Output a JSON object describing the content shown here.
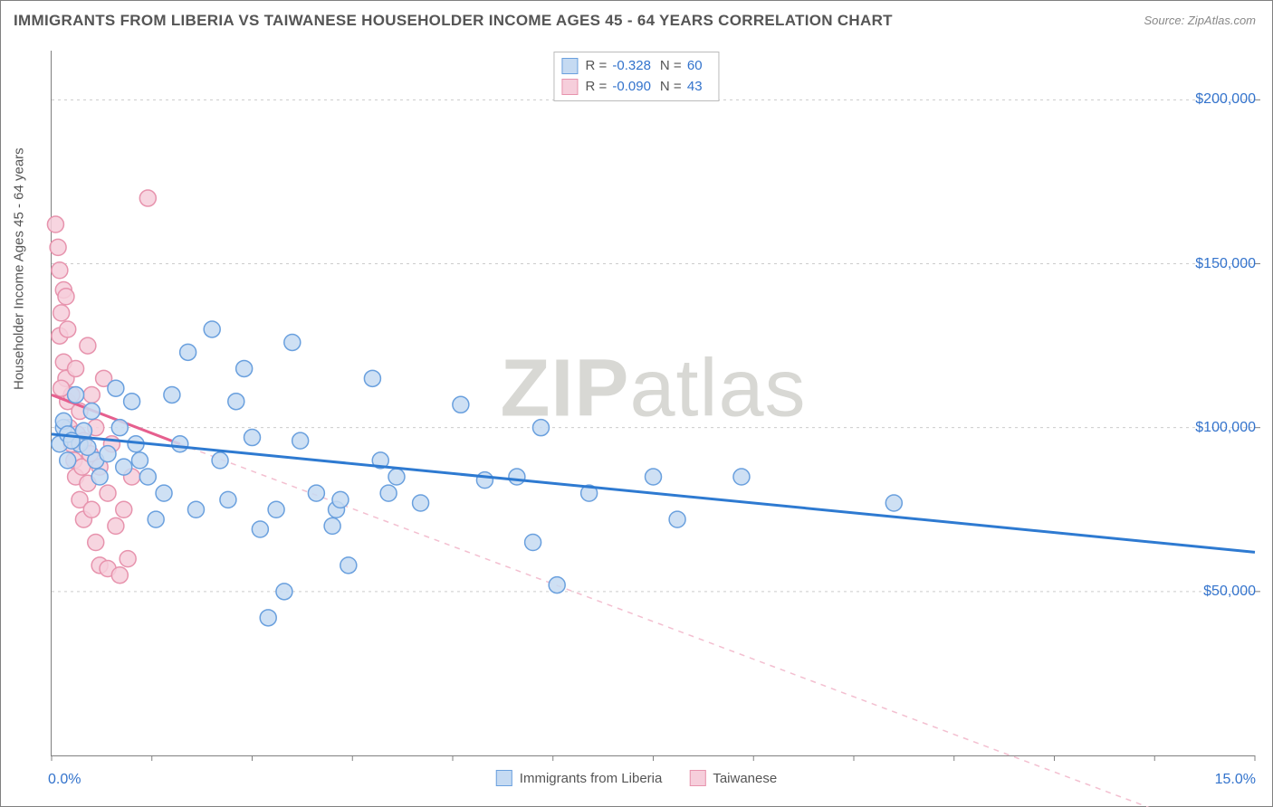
{
  "title": "IMMIGRANTS FROM LIBERIA VS TAIWANESE HOUSEHOLDER INCOME AGES 45 - 64 YEARS CORRELATION CHART",
  "source": "Source: ZipAtlas.com",
  "watermark": {
    "bold": "ZIP",
    "rest": "atlas"
  },
  "ylabel": "Householder Income Ages 45 - 64 years",
  "chart": {
    "type": "scatter",
    "background_color": "#ffffff",
    "grid_color": "#cccccc",
    "axis_color": "#808080",
    "tick_color": "#3373cc",
    "xlim": [
      0,
      15
    ],
    "ylim": [
      0,
      215000
    ],
    "xtick_min_label": "0.0%",
    "xtick_max_label": "15.0%",
    "xticks": [
      0,
      1.25,
      2.5,
      3.75,
      5.0,
      6.25,
      7.5,
      8.75,
      10.0,
      11.25,
      12.5,
      13.75,
      15.0
    ],
    "yticks": [
      {
        "value": 50000,
        "label": "$50,000"
      },
      {
        "value": 100000,
        "label": "$100,000"
      },
      {
        "value": 150000,
        "label": "$150,000"
      },
      {
        "value": 200000,
        "label": "$200,000"
      }
    ],
    "series": [
      {
        "name": "Immigrants from Liberia",
        "marker_color_fill": "#c5daf2",
        "marker_color_stroke": "#6aa0de",
        "marker_radius": 9,
        "line_color": "#2e7ad1",
        "line_width": 3,
        "dash_color": "#a9cdf0",
        "R": "-0.328",
        "N": "60",
        "trend": {
          "x1": 0,
          "y1": 98000,
          "x2": 15,
          "y2": 62000
        },
        "points": [
          [
            0.1,
            95000
          ],
          [
            0.15,
            100000
          ],
          [
            0.15,
            102000
          ],
          [
            0.2,
            98000
          ],
          [
            0.2,
            90000
          ],
          [
            0.3,
            110000
          ],
          [
            0.35,
            95000
          ],
          [
            0.4,
            99000
          ],
          [
            0.5,
            105000
          ],
          [
            0.55,
            90000
          ],
          [
            0.6,
            85000
          ],
          [
            0.7,
            92000
          ],
          [
            0.8,
            112000
          ],
          [
            0.85,
            100000
          ],
          [
            0.9,
            88000
          ],
          [
            1.0,
            108000
          ],
          [
            1.05,
            95000
          ],
          [
            1.1,
            90000
          ],
          [
            1.2,
            85000
          ],
          [
            1.3,
            72000
          ],
          [
            1.4,
            80000
          ],
          [
            1.5,
            110000
          ],
          [
            1.6,
            95000
          ],
          [
            1.7,
            123000
          ],
          [
            1.8,
            75000
          ],
          [
            2.0,
            130000
          ],
          [
            2.1,
            90000
          ],
          [
            2.2,
            78000
          ],
          [
            2.3,
            108000
          ],
          [
            2.4,
            118000
          ],
          [
            2.5,
            97000
          ],
          [
            2.6,
            69000
          ],
          [
            2.7,
            42000
          ],
          [
            2.8,
            75000
          ],
          [
            2.9,
            50000
          ],
          [
            3.0,
            126000
          ],
          [
            3.1,
            96000
          ],
          [
            3.3,
            80000
          ],
          [
            3.5,
            70000
          ],
          [
            3.55,
            75000
          ],
          [
            3.6,
            78000
          ],
          [
            3.7,
            58000
          ],
          [
            4.0,
            115000
          ],
          [
            4.1,
            90000
          ],
          [
            4.2,
            80000
          ],
          [
            4.3,
            85000
          ],
          [
            4.6,
            77000
          ],
          [
            5.1,
            107000
          ],
          [
            5.4,
            84000
          ],
          [
            5.8,
            85000
          ],
          [
            6.0,
            65000
          ],
          [
            6.1,
            100000
          ],
          [
            6.3,
            52000
          ],
          [
            6.7,
            80000
          ],
          [
            7.5,
            85000
          ],
          [
            7.8,
            72000
          ],
          [
            8.6,
            85000
          ],
          [
            10.5,
            77000
          ],
          [
            0.25,
            96000
          ],
          [
            0.45,
            94000
          ]
        ]
      },
      {
        "name": "Taiwanese",
        "marker_color_fill": "#f6cedb",
        "marker_color_stroke": "#e793ad",
        "marker_radius": 9,
        "line_color": "#e65f8e",
        "line_width": 3,
        "dash_color": "#f3bfd0",
        "R": "-0.090",
        "N": "43",
        "trend": {
          "x1": 0,
          "y1": 110000,
          "x2": 1.6,
          "y2": 95000
        },
        "trend_dash_end": {
          "x2": 15,
          "y2": -28000
        },
        "points": [
          [
            0.05,
            162000
          ],
          [
            0.08,
            155000
          ],
          [
            0.1,
            148000
          ],
          [
            0.1,
            128000
          ],
          [
            0.12,
            135000
          ],
          [
            0.15,
            142000
          ],
          [
            0.15,
            120000
          ],
          [
            0.18,
            115000
          ],
          [
            0.2,
            130000
          ],
          [
            0.2,
            108000
          ],
          [
            0.22,
            100000
          ],
          [
            0.25,
            110000
          ],
          [
            0.25,
            95000
          ],
          [
            0.28,
            90000
          ],
          [
            0.3,
            118000
          ],
          [
            0.3,
            85000
          ],
          [
            0.32,
            98000
          ],
          [
            0.35,
            105000
          ],
          [
            0.35,
            78000
          ],
          [
            0.38,
            88000
          ],
          [
            0.4,
            96000
          ],
          [
            0.4,
            72000
          ],
          [
            0.45,
            125000
          ],
          [
            0.45,
            83000
          ],
          [
            0.48,
            92000
          ],
          [
            0.5,
            110000
          ],
          [
            0.5,
            75000
          ],
          [
            0.55,
            100000
          ],
          [
            0.55,
            65000
          ],
          [
            0.6,
            88000
          ],
          [
            0.6,
            58000
          ],
          [
            0.65,
            115000
          ],
          [
            0.7,
            80000
          ],
          [
            0.7,
            57000
          ],
          [
            0.75,
            95000
          ],
          [
            0.8,
            70000
          ],
          [
            0.85,
            55000
          ],
          [
            0.9,
            75000
          ],
          [
            0.95,
            60000
          ],
          [
            1.0,
            85000
          ],
          [
            1.2,
            170000
          ],
          [
            0.12,
            112000
          ],
          [
            0.18,
            140000
          ]
        ]
      }
    ]
  }
}
